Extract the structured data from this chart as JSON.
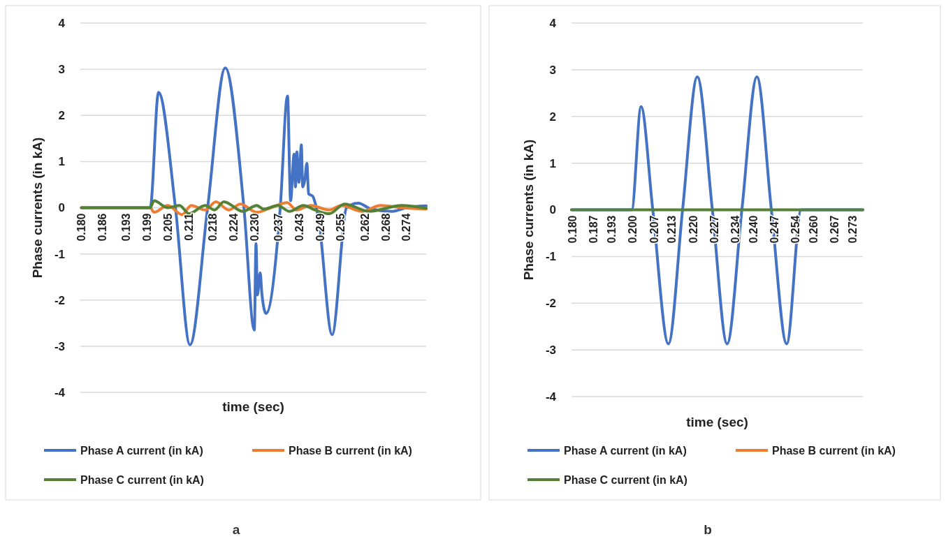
{
  "chart_data": [
    {
      "type": "line",
      "xlabel": "time (sec)",
      "ylabel": "Phase currents (in kA)",
      "annotations": [
        "a"
      ],
      "xlim": [
        0.1797,
        0.2797
      ],
      "ylim": [
        -4,
        4
      ],
      "yticks": [
        -4,
        -3,
        -2,
        -1,
        0,
        1,
        2,
        3,
        4
      ],
      "xticks": [
        {
          "value": 0.18,
          "label": "0.180"
        },
        {
          "value": 0.186,
          "label": "0.186"
        },
        {
          "value": 0.193,
          "label": "0.193"
        },
        {
          "value": 0.199,
          "label": "0.199"
        },
        {
          "value": 0.205,
          "label": "0.205"
        },
        {
          "value": 0.211,
          "label": "0.211"
        },
        {
          "value": 0.218,
          "label": "0.218"
        },
        {
          "value": 0.224,
          "label": "0.224"
        },
        {
          "value": 0.23,
          "label": "0.230"
        },
        {
          "value": 0.237,
          "label": "0.237"
        },
        {
          "value": 0.243,
          "label": "0.243"
        },
        {
          "value": 0.249,
          "label": "0.249"
        },
        {
          "value": 0.255,
          "label": "0.255"
        },
        {
          "value": 0.262,
          "label": "0.262"
        },
        {
          "value": 0.268,
          "label": "0.268"
        },
        {
          "value": 0.274,
          "label": "0.274"
        }
      ],
      "grid": "y",
      "legend": "bottom",
      "line_style": "solid",
      "marker": "none",
      "series": [
        {
          "name": "Phase A current (in kA)",
          "color": "#4472c4",
          "x": [
            0.18,
            0.1999,
            0.2023,
            0.2072,
            0.2114,
            0.2165,
            0.2216,
            0.227,
            0.23,
            0.2305,
            0.2309,
            0.2317,
            0.2322,
            0.2334,
            0.2375,
            0.2396,
            0.2405,
            0.2415,
            0.2419,
            0.2423,
            0.2429,
            0.2436,
            0.244,
            0.2446,
            0.2452,
            0.2457,
            0.2469,
            0.2476,
            0.2486,
            0.2525,
            0.2567,
            0.2601,
            0.2638,
            0.2699,
            0.274,
            0.2797
          ],
          "values": [
            0,
            0,
            2.5,
            0,
            -2.97,
            0,
            3.03,
            0,
            -2.65,
            -0.78,
            -1.89,
            -1.41,
            -1.87,
            -2.29,
            0,
            2.42,
            0.15,
            1.16,
            0.45,
            1.21,
            0.55,
            1.36,
            0.45,
            0.6,
            0.96,
            0.3,
            0.25,
            0.1,
            -0.25,
            -2.75,
            0,
            0.1,
            -0.03,
            -0.08,
            0,
            0.04
          ]
        },
        {
          "name": "Phase B current (in kA)",
          "color": "#ed7d31",
          "x": [
            0.18,
            0.1999,
            0.201,
            0.205,
            0.2091,
            0.2118,
            0.2158,
            0.2189,
            0.2226,
            0.226,
            0.2307,
            0.2348,
            0.2395,
            0.2422,
            0.2463,
            0.2517,
            0.2551,
            0.2611,
            0.2665,
            0.2726,
            0.2797
          ],
          "values": [
            0,
            0,
            -0.1,
            0.05,
            -0.15,
            0.05,
            -0.05,
            0.13,
            -0.05,
            0.08,
            -0.1,
            0,
            0.11,
            -0.05,
            0.05,
            -0.05,
            0.05,
            -0.08,
            0.05,
            0,
            -0.03
          ]
        },
        {
          "name": "Phase C current (in kA)",
          "color": "#538135",
          "x": [
            0.18,
            0.1999,
            0.201,
            0.205,
            0.2084,
            0.2111,
            0.2158,
            0.2185,
            0.2212,
            0.2267,
            0.2307,
            0.2327,
            0.2368,
            0.2402,
            0.2442,
            0.2476,
            0.2517,
            0.2561,
            0.2632,
            0.2726,
            0.2797
          ],
          "values": [
            0,
            0,
            0.15,
            0,
            0.05,
            -0.13,
            0.05,
            -0.05,
            0.13,
            -0.08,
            0.05,
            -0.03,
            0.05,
            -0.08,
            0.05,
            -0.05,
            -0.13,
            0.08,
            -0.08,
            0.05,
            -0.01
          ]
        }
      ]
    },
    {
      "type": "line",
      "xlabel": "time (sec)",
      "ylabel": "Phase currents (in kA)",
      "annotations": [
        "b"
      ],
      "xlim": [
        0.1796,
        0.2764
      ],
      "ylim": [
        -4,
        4
      ],
      "yticks": [
        -4,
        -3,
        -2,
        -1,
        0,
        1,
        2,
        3,
        4
      ],
      "xticks": [
        {
          "value": 0.18,
          "label": "0.180"
        },
        {
          "value": 0.187,
          "label": "0.187"
        },
        {
          "value": 0.193,
          "label": "0.193"
        },
        {
          "value": 0.2,
          "label": "0.200"
        },
        {
          "value": 0.207,
          "label": "0.207"
        },
        {
          "value": 0.213,
          "label": "0.213"
        },
        {
          "value": 0.22,
          "label": "0.220"
        },
        {
          "value": 0.227,
          "label": "0.227"
        },
        {
          "value": 0.234,
          "label": "0.234"
        },
        {
          "value": 0.24,
          "label": "0.240"
        },
        {
          "value": 0.247,
          "label": "0.247"
        },
        {
          "value": 0.254,
          "label": "0.254"
        },
        {
          "value": 0.26,
          "label": "0.260"
        },
        {
          "value": 0.267,
          "label": "0.267"
        },
        {
          "value": 0.273,
          "label": "0.273"
        }
      ],
      "grid": "y",
      "legend": "bottom",
      "line_style": "solid",
      "marker": "none",
      "series": [
        {
          "name": "Phase A current (in kA)",
          "color": "#4472c4",
          "x": [
            0.1796,
            0.1996,
            0.2027,
            0.2066,
            0.2118,
            0.2165,
            0.2214,
            0.2264,
            0.2313,
            0.2362,
            0.2412,
            0.246,
            0.2511,
            0.2559,
            0.2764
          ],
          "values": [
            0,
            0,
            2.21,
            0,
            -2.87,
            0,
            2.85,
            0,
            -2.87,
            0,
            2.85,
            0,
            -2.87,
            0,
            0
          ]
        },
        {
          "name": "Phase B current (in kA)",
          "color": "#ed7d31"
        },
        {
          "name": "Phase C current (in kA)",
          "color": "#538135",
          "x": [
            0.1796,
            0.2764
          ],
          "values": [
            0,
            0
          ]
        }
      ]
    }
  ]
}
